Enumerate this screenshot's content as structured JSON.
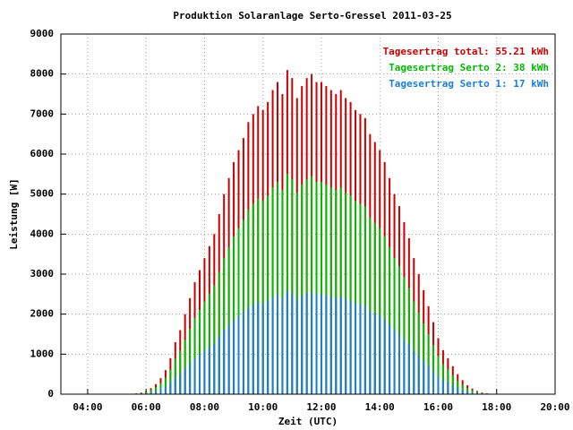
{
  "chart_data": {
    "type": "bar",
    "title": "Produktion Solaranlage Serto-Gressel 2011-03-25",
    "xlabel": "Zeit (UTC)",
    "ylabel": "Leistung [W]",
    "x": [
      340,
      350,
      360,
      370,
      380,
      390,
      400,
      410,
      420,
      430,
      440,
      450,
      460,
      470,
      480,
      490,
      500,
      510,
      520,
      530,
      540,
      550,
      560,
      570,
      580,
      590,
      600,
      610,
      620,
      630,
      640,
      650,
      660,
      670,
      680,
      690,
      700,
      710,
      720,
      730,
      740,
      750,
      760,
      770,
      780,
      790,
      800,
      810,
      820,
      830,
      840,
      850,
      860,
      870,
      880,
      890,
      900,
      910,
      920,
      930,
      940,
      950,
      960,
      970,
      980,
      990,
      1000,
      1010,
      1020,
      1030,
      1040,
      1050,
      1060,
      1070
    ],
    "series": [
      {
        "name": "Tagesertrag total: 55.21 kWh",
        "color": "#cc0000",
        "values": [
          20,
          40,
          80,
          150,
          250,
          400,
          600,
          900,
          1300,
          1600,
          2000,
          2400,
          2800,
          3100,
          3400,
          3700,
          4000,
          4500,
          5000,
          5400,
          5800,
          6100,
          6400,
          6800,
          7000,
          7200,
          7100,
          7300,
          7600,
          7800,
          7500,
          8100,
          7900,
          7400,
          7700,
          7900,
          8000,
          7800,
          7800,
          7700,
          7600,
          7500,
          7600,
          7400,
          7300,
          7100,
          7000,
          6900,
          6500,
          6300,
          6100,
          5800,
          5400,
          5000,
          4700,
          4300,
          3900,
          3400,
          3000,
          2600,
          2200,
          1800,
          1400,
          1100,
          900,
          700,
          500,
          350,
          220,
          140,
          80,
          40,
          20,
          10
        ]
      },
      {
        "name": "Tagesertrag Serto 2: 38 kWh",
        "color": "#00bb00",
        "values": [
          14,
          27,
          54,
          102,
          170,
          272,
          408,
          612,
          884,
          1088,
          1360,
          1632,
          1904,
          2108,
          2312,
          2516,
          2720,
          3060,
          3400,
          3672,
          3944,
          4148,
          4352,
          4624,
          4760,
          4896,
          4828,
          4964,
          5168,
          5304,
          5100,
          5508,
          5372,
          5032,
          5236,
          5372,
          5440,
          5304,
          5304,
          5236,
          5168,
          5100,
          5168,
          5032,
          4964,
          4828,
          4760,
          4692,
          4420,
          4284,
          4148,
          3944,
          3672,
          3400,
          3196,
          2924,
          2652,
          2312,
          2040,
          1768,
          1496,
          1224,
          952,
          748,
          612,
          476,
          340,
          238,
          150,
          95,
          54,
          27,
          14,
          7
        ]
      },
      {
        "name": "Tagesertrag Serto 1: 17 kWh",
        "color": "#1a7fd4",
        "values": [
          6,
          13,
          26,
          48,
          80,
          128,
          192,
          288,
          416,
          512,
          640,
          768,
          896,
          992,
          1088,
          1184,
          1280,
          1440,
          1600,
          1728,
          1856,
          1952,
          2048,
          2176,
          2240,
          2304,
          2272,
          2336,
          2432,
          2496,
          2400,
          2592,
          2528,
          2368,
          2464,
          2528,
          2560,
          2496,
          2496,
          2464,
          2432,
          2400,
          2432,
          2368,
          2336,
          2272,
          2240,
          2208,
          2080,
          2016,
          1952,
          1856,
          1728,
          1600,
          1504,
          1376,
          1248,
          1088,
          960,
          832,
          704,
          576,
          448,
          352,
          288,
          224,
          160,
          112,
          70,
          45,
          26,
          13,
          6,
          3
        ]
      }
    ],
    "xlim": [
      185,
      1200
    ],
    "xticks": [
      {
        "value": 240,
        "label": "04:00"
      },
      {
        "value": 360,
        "label": "06:00"
      },
      {
        "value": 480,
        "label": "08:00"
      },
      {
        "value": 600,
        "label": "10:00"
      },
      {
        "value": 720,
        "label": "12:00"
      },
      {
        "value": 840,
        "label": "14:00"
      },
      {
        "value": 960,
        "label": "16:00"
      },
      {
        "value": 1080,
        "label": "18:00"
      },
      {
        "value": 1200,
        "label": "20:00"
      }
    ],
    "ylim": [
      0,
      9000
    ],
    "yticks": [
      0,
      1000,
      2000,
      3000,
      4000,
      5000,
      6000,
      7000,
      8000,
      9000
    ],
    "grid": true,
    "legend": "top-right"
  }
}
